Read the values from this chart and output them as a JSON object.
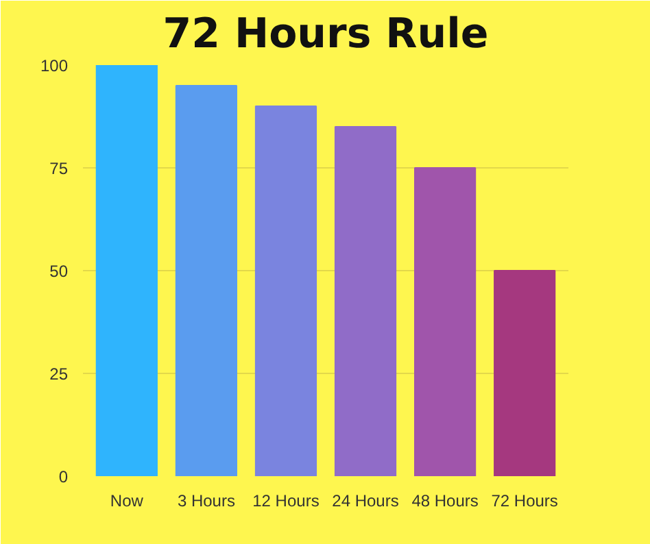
{
  "chart_data": {
    "type": "bar",
    "title": "72 Hours Rule",
    "categories": [
      "Now",
      "3 Hours",
      "12 Hours",
      "24 Hours",
      "48 Hours",
      "72 Hours"
    ],
    "values": [
      100,
      95,
      90,
      85,
      75,
      50
    ],
    "colors": [
      "#2fb4fd",
      "#5a9cef",
      "#7a84df",
      "#906cc8",
      "#a055ab",
      "#a5387f"
    ],
    "ylim": [
      0,
      100
    ],
    "yticks": [
      0,
      25,
      50,
      75,
      100
    ],
    "grid": "y"
  }
}
